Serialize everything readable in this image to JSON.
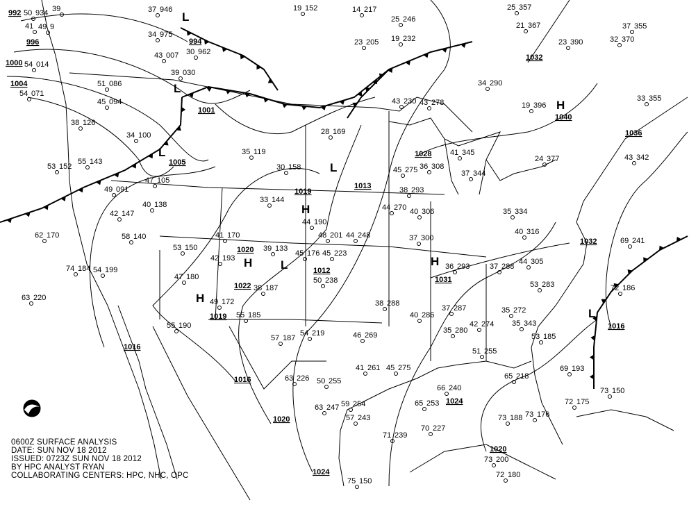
{
  "caption": {
    "line1": "0600Z SURFACE ANALYSIS",
    "line2": "DATE: SUN NOV 18 2012",
    "line3": "ISSUED: 0723Z SUN NOV 18 2012",
    "line4": "BY HPC ANALYST RYAN",
    "line5": "COLLABORATING CENTERS: HPC, NHC, OPC"
  },
  "logo": "noaa-logo",
  "pressure_centers": [
    {
      "type": "H"
    },
    {
      "type": "H"
    },
    {
      "type": "H"
    },
    {
      "type": "H"
    },
    {
      "type": "H"
    },
    {
      "type": "L"
    },
    {
      "type": "L"
    },
    {
      "type": "L"
    },
    {
      "type": "L"
    },
    {
      "type": "L"
    },
    {
      "type": "L"
    }
  ],
  "isobar_labels": [
    "992",
    "996",
    "1000",
    "1004",
    "994",
    "1001",
    "1005",
    "1016",
    "1016",
    "1020",
    "1024",
    "1020",
    "1016",
    "1036",
    "1032",
    "1040",
    "1028",
    "1031",
    "1012",
    "1019",
    "1013",
    "1020",
    "1022",
    "1019",
    "1032",
    "1024"
  ],
  "stations": [
    [
      "50",
      "934"
    ],
    [
      "41",
      ""
    ],
    [
      "49",
      "9"
    ],
    [
      "54",
      "014"
    ],
    [
      "54",
      "071"
    ],
    [
      "39",
      ""
    ],
    [
      "37",
      "946"
    ],
    [
      "34",
      "975"
    ],
    [
      "43",
      "007"
    ],
    [
      "30",
      "962"
    ],
    [
      "39",
      "030"
    ],
    [
      "51",
      "086"
    ],
    [
      "45",
      "094"
    ],
    [
      "38",
      "126"
    ],
    [
      "34",
      "100"
    ],
    [
      "53",
      "152"
    ],
    [
      "55",
      "143"
    ],
    [
      "49",
      "091"
    ],
    [
      "47",
      "105"
    ],
    [
      "40",
      "138"
    ],
    [
      "42",
      "147"
    ],
    [
      "58",
      "140"
    ],
    [
      "62",
      "170"
    ],
    [
      "53",
      "150"
    ],
    [
      "47",
      "180"
    ],
    [
      "74",
      "184"
    ],
    [
      "54",
      "199"
    ],
    [
      "63",
      "220"
    ],
    [
      "55",
      "190"
    ],
    [
      "49",
      "172"
    ],
    [
      "41",
      "170"
    ],
    [
      "42",
      "193"
    ],
    [
      "38",
      "187"
    ],
    [
      "33",
      "144"
    ],
    [
      "39",
      "133"
    ],
    [
      "45",
      "176"
    ],
    [
      "44",
      "190"
    ],
    [
      "48",
      "201"
    ],
    [
      "45",
      "223"
    ],
    [
      "50",
      "238"
    ],
    [
      "44",
      "248"
    ],
    [
      "37",
      "300"
    ],
    [
      "40",
      "306"
    ],
    [
      "44",
      "270"
    ],
    [
      "38",
      "293"
    ],
    [
      "45",
      "275"
    ],
    [
      "36",
      "308"
    ],
    [
      "35",
      "119"
    ],
    [
      "30",
      "158"
    ],
    [
      "28",
      "169"
    ],
    [
      "19",
      "152"
    ],
    [
      "14",
      "217"
    ],
    [
      "23",
      "205"
    ],
    [
      "19",
      "232"
    ],
    [
      "25",
      "246"
    ],
    [
      "25",
      "357"
    ],
    [
      "21",
      "367"
    ],
    [
      "23",
      "390"
    ],
    [
      "32",
      "370"
    ],
    [
      "37",
      "355"
    ],
    [
      "34",
      "290"
    ],
    [
      "43",
      "230"
    ],
    [
      "43",
      "278"
    ],
    [
      "41",
      "345"
    ],
    [
      "37",
      "344"
    ],
    [
      "35",
      "334"
    ],
    [
      "40",
      "316"
    ],
    [
      "37",
      "288"
    ],
    [
      "36",
      "293"
    ],
    [
      "44",
      "305"
    ],
    [
      "53",
      "283"
    ],
    [
      "35",
      "272"
    ],
    [
      "42",
      "274"
    ],
    [
      "35",
      "280"
    ],
    [
      "40",
      "286"
    ],
    [
      "37",
      "287"
    ],
    [
      "38",
      "288"
    ],
    [
      "46",
      "269"
    ],
    [
      "54",
      "219"
    ],
    [
      "57",
      "187"
    ],
    [
      "55",
      "185"
    ],
    [
      "41",
      "261"
    ],
    [
      "45",
      "275"
    ],
    [
      "50",
      "255"
    ],
    [
      "63",
      "247"
    ],
    [
      "59",
      "254"
    ],
    [
      "63",
      "226"
    ],
    [
      "57",
      "243"
    ],
    [
      "65",
      "253"
    ],
    [
      "66",
      "240"
    ],
    [
      "71",
      "239"
    ],
    [
      "70",
      "227"
    ],
    [
      "73",
      "188"
    ],
    [
      "73",
      "176"
    ],
    [
      "72",
      "175"
    ],
    [
      "73",
      "150"
    ],
    [
      "73",
      "200"
    ],
    [
      "72",
      "180"
    ],
    [
      "69",
      "241"
    ],
    [
      "72",
      "186"
    ],
    [
      "33",
      "355"
    ],
    [
      "43",
      "342"
    ],
    [
      "24",
      "377"
    ],
    [
      "19",
      "396"
    ],
    [
      "35",
      "343"
    ],
    [
      "65",
      "218"
    ],
    [
      "69",
      "193"
    ],
    [
      "75",
      "150"
    ],
    [
      "53",
      "185"
    ],
    [
      "51",
      "255"
    ]
  ]
}
